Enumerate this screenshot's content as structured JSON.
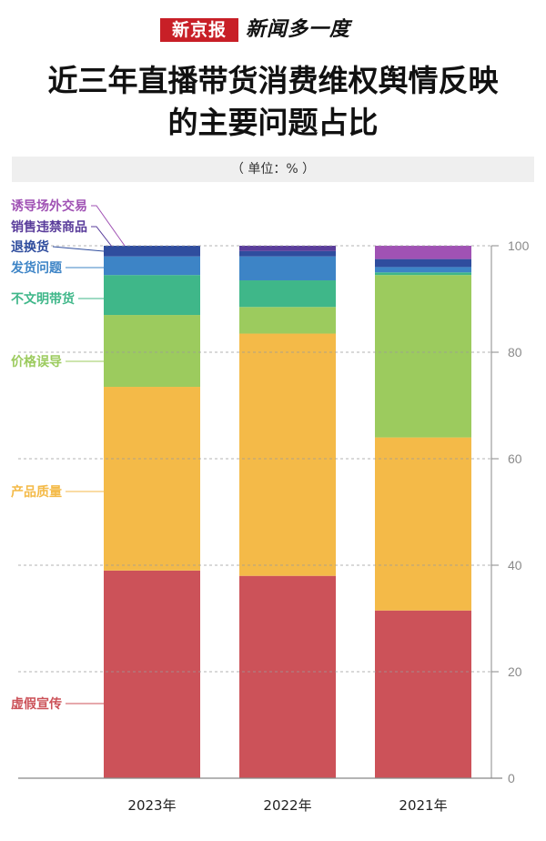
{
  "header": {
    "logo_text": "新京报",
    "brand_text": "新闻多一度"
  },
  "title_line1": "近三年直播带货消费维权舆情反映",
  "title_line2": "的主要问题占比",
  "unit_text": "（ 单位：% ）",
  "colors": {
    "虚假宣传": "#cc5259",
    "产品质量": "#f4ba48",
    "价格误导": "#9ccb5e",
    "不文明带货": "#3fb789",
    "发货问题": "#3d84c6",
    "退换货": "#2f4d9e",
    "销售违禁商品": "#5a3d9b",
    "诱导场外交易": "#a052b4"
  },
  "chart_data": {
    "type": "bar",
    "stacked": true,
    "categories": [
      "2023年",
      "2022年",
      "2021年"
    ],
    "series": [
      {
        "name": "虚假宣传",
        "values": [
          39,
          38,
          31.5
        ]
      },
      {
        "name": "产品质量",
        "values": [
          34.5,
          45.5,
          32.5
        ]
      },
      {
        "name": "价格误导",
        "values": [
          13.5,
          5,
          30.5
        ]
      },
      {
        "name": "不文明带货",
        "values": [
          7.5,
          5,
          0.5
        ]
      },
      {
        "name": "发货问题",
        "values": [
          3.5,
          4.5,
          1
        ]
      },
      {
        "name": "退换货",
        "values": [
          2,
          1,
          1.5
        ]
      },
      {
        "name": "销售违禁商品",
        "values": [
          0,
          1,
          0
        ]
      },
      {
        "name": "诱导场外交易",
        "values": [
          0,
          0,
          2.5
        ]
      }
    ],
    "ylim": [
      0,
      100
    ],
    "yticks": [
      "0",
      "20",
      "40",
      "60",
      "80",
      "100"
    ],
    "ytick_values": [
      0,
      20,
      40,
      60,
      80,
      100
    ],
    "grid": true,
    "legend_placement": "left"
  }
}
